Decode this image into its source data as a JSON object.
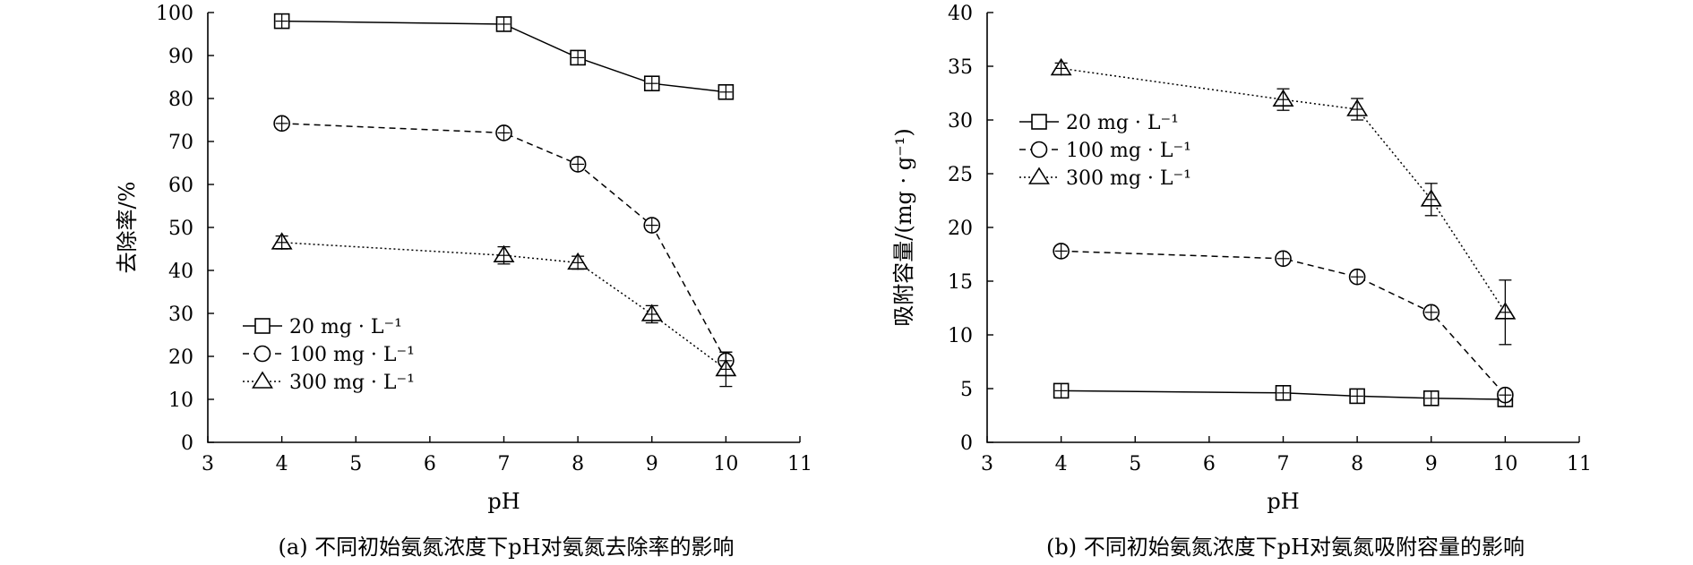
{
  "chart_data": [
    {
      "type": "line",
      "caption": "(a) 不同初始氨氮浓度下pH对氨氮去除率的影响",
      "xlabel": "pH",
      "ylabel": "去除率/%",
      "xlim": [
        3,
        11
      ],
      "ylim": [
        0,
        100
      ],
      "xticks": [
        3,
        4,
        5,
        6,
        7,
        8,
        9,
        10,
        11
      ],
      "yticks": [
        0,
        10,
        20,
        30,
        40,
        50,
        60,
        70,
        80,
        90,
        100
      ],
      "legend_position": "bottom-left",
      "grid": false,
      "series": [
        {
          "name": "20 mg · L⁻¹",
          "marker": "square",
          "line": "solid",
          "x": [
            4,
            7,
            8,
            9,
            10
          ],
          "y": [
            98,
            97.3,
            89.5,
            83.5,
            81.5
          ],
          "err": [
            0.8,
            0.8,
            1.2,
            1.0,
            0.8
          ]
        },
        {
          "name": "100 mg · L⁻¹",
          "marker": "circle",
          "line": "dashed",
          "x": [
            4,
            7,
            8,
            9,
            10
          ],
          "y": [
            74.2,
            72,
            64.7,
            50.5,
            19
          ],
          "err": [
            0.8,
            0.8,
            1.0,
            1.2,
            2.0
          ]
        },
        {
          "name": "300 mg · L⁻¹",
          "marker": "triangle",
          "line": "dotted",
          "x": [
            4,
            7,
            8,
            9,
            10
          ],
          "y": [
            46.5,
            43.5,
            41.8,
            29.8,
            17
          ],
          "err": [
            1.5,
            2.0,
            1.5,
            2.0,
            4.0
          ]
        }
      ]
    },
    {
      "type": "line",
      "caption": "(b) 不同初始氨氮浓度下pH对氨氮吸附容量的影响",
      "xlabel": "pH",
      "ylabel": "吸附容量/(mg · g⁻¹)",
      "xlim": [
        3,
        11
      ],
      "ylim": [
        0,
        40
      ],
      "xticks": [
        3,
        4,
        5,
        6,
        7,
        8,
        9,
        10,
        11
      ],
      "yticks": [
        0,
        5,
        10,
        15,
        20,
        25,
        30,
        35,
        40
      ],
      "legend_position": "top-left",
      "grid": false,
      "series": [
        {
          "name": "20 mg · L⁻¹",
          "marker": "square",
          "line": "solid",
          "x": [
            4,
            7,
            8,
            9,
            10
          ],
          "y": [
            4.8,
            4.6,
            4.3,
            4.1,
            4.0
          ],
          "err": [
            0.3,
            0.3,
            0.3,
            0.3,
            0.3
          ]
        },
        {
          "name": "100 mg · L⁻¹",
          "marker": "circle",
          "line": "dashed",
          "x": [
            4,
            7,
            8,
            9,
            10
          ],
          "y": [
            17.8,
            17.1,
            15.4,
            12.1,
            4.4
          ],
          "err": [
            0.5,
            0.4,
            0.4,
            0.4,
            0.4
          ]
        },
        {
          "name": "300 mg · L⁻¹",
          "marker": "triangle",
          "line": "dotted",
          "x": [
            4,
            7,
            8,
            9,
            10
          ],
          "y": [
            34.8,
            31.9,
            31.0,
            22.6,
            12.1
          ],
          "err": [
            0.5,
            1.0,
            1.0,
            1.5,
            3.0
          ]
        }
      ]
    }
  ]
}
